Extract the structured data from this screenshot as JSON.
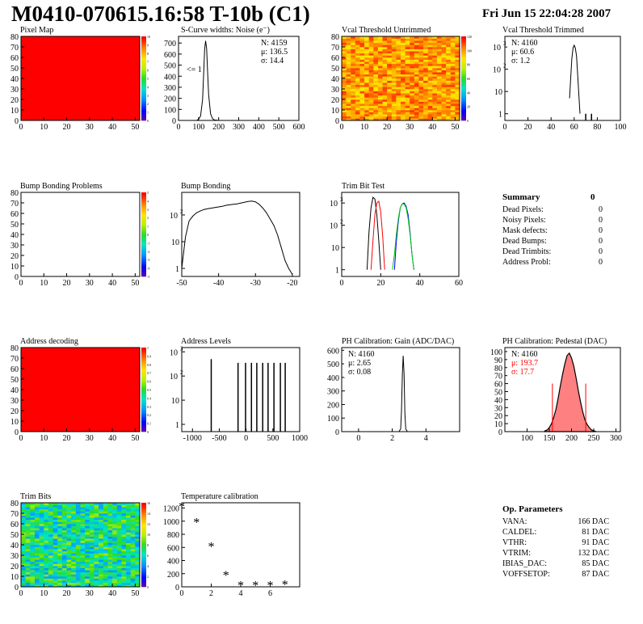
{
  "header": {
    "title": "M0410-070615.16:58 T-10b (C1)",
    "date": "Fri Jun 15 22:04:28 2007"
  },
  "colors": {
    "red": "#ff0000",
    "green": "#00cc00",
    "blue": "#0000ff",
    "black": "#000000",
    "pedestal_fill": "#ff8080"
  },
  "chart_data": [
    {
      "id": "pixel-map",
      "type": "heatmap",
      "title": "Pixel Map",
      "xlim": [
        0,
        52
      ],
      "ylim": [
        0,
        80
      ],
      "xticks": [
        0,
        10,
        20,
        30,
        40,
        50
      ],
      "yticks": [
        0,
        10,
        20,
        30,
        40,
        50,
        60,
        70,
        80
      ],
      "fill": "uniform",
      "value": 10,
      "zticks": [
        "0",
        "1",
        "2",
        "3",
        "4",
        "5",
        "6",
        "7",
        "8",
        "9",
        "10"
      ]
    },
    {
      "id": "scurve-noise",
      "type": "line",
      "title": "S-Curve widths: Noise (e⁻)",
      "xlim": [
        0,
        600
      ],
      "ylim": [
        0,
        760
      ],
      "xticks": [
        0,
        100,
        200,
        300,
        400,
        500,
        600
      ],
      "yticks": [
        0,
        100,
        200,
        300,
        400,
        500,
        600,
        700
      ],
      "stats": [
        "N: 4159",
        "μ: 136.5",
        "σ: 14.4"
      ],
      "annotation": "<= 1",
      "series": [
        {
          "x": [
            90,
            100,
            110,
            120,
            125,
            130,
            135,
            140,
            145,
            150,
            160,
            170,
            180,
            200
          ],
          "y": [
            0,
            10,
            40,
            190,
            400,
            640,
            720,
            650,
            440,
            230,
            60,
            15,
            4,
            0
          ]
        }
      ]
    },
    {
      "id": "vcal-untrimmed",
      "type": "heatmap",
      "title": "Vcal Threshold Untrimmed",
      "xlim": [
        0,
        52
      ],
      "ylim": [
        0,
        80
      ],
      "xticks": [
        0,
        10,
        20,
        30,
        40,
        50
      ],
      "yticks": [
        0,
        10,
        20,
        30,
        40,
        50,
        60,
        70,
        80
      ],
      "fill": "random",
      "range": [
        0.72,
        0.95
      ],
      "zticks": [
        "0",
        "20",
        "40",
        "60",
        "80",
        "100",
        "120"
      ]
    },
    {
      "id": "vcal-trimmed",
      "type": "line",
      "title": "Vcal Threshold Trimmed",
      "xlim": [
        0,
        100
      ],
      "ylim": [
        0.5,
        3000
      ],
      "log_y": true,
      "xticks": [
        0,
        20,
        40,
        60,
        80,
        100
      ],
      "stats": [
        "N: 4160",
        "μ: 60.6",
        "σ:  1.2"
      ],
      "series": [
        {
          "x": [
            56,
            57,
            58,
            59,
            60,
            61,
            62,
            63,
            64,
            65
          ],
          "y": [
            5,
            40,
            300,
            900,
            1200,
            900,
            400,
            60,
            8,
            1
          ]
        }
      ],
      "spikes": [
        {
          "x": 70,
          "y": 1
        },
        {
          "x": 75,
          "y": 1
        }
      ]
    },
    {
      "id": "bump-bonding-problems",
      "type": "heatmap",
      "title": "Bump Bonding Problems",
      "xlim": [
        0,
        52
      ],
      "ylim": [
        0,
        80
      ],
      "xticks": [
        0,
        10,
        20,
        30,
        40,
        50
      ],
      "yticks": [
        0,
        10,
        20,
        30,
        40,
        50,
        60,
        70,
        80
      ],
      "fill": "empty",
      "zticks": [
        "-5",
        "-4",
        "-3",
        "-2",
        "-1",
        "0",
        "1",
        "2",
        "3",
        "4",
        "5"
      ]
    },
    {
      "id": "bump-bonding",
      "type": "line",
      "title": "Bump Bonding",
      "xlim": [
        -50,
        -18
      ],
      "ylim": [
        0.5,
        700
      ],
      "log_y": true,
      "xticks": [
        -50,
        -40,
        -30,
        -20
      ],
      "series": [
        {
          "x": [
            -50,
            -49,
            -48,
            -47,
            -46,
            -45,
            -44,
            -43,
            -42,
            -41,
            -40,
            -39,
            -38,
            -37,
            -36,
            -35,
            -34,
            -33,
            -32,
            -31,
            -30,
            -29,
            -28,
            -27,
            -26,
            -25,
            -24,
            -23,
            -22,
            -21,
            -20
          ],
          "y": [
            1,
            15,
            60,
            90,
            120,
            140,
            160,
            170,
            180,
            190,
            200,
            210,
            230,
            240,
            250,
            260,
            280,
            300,
            320,
            330,
            310,
            250,
            180,
            120,
            70,
            40,
            18,
            6,
            2,
            1,
            0.6
          ]
        }
      ]
    },
    {
      "id": "trim-bit-test",
      "type": "line",
      "title": "Trim Bit Test",
      "xlim": [
        0,
        60
      ],
      "ylim": [
        0.5,
        3000
      ],
      "log_y": true,
      "xticks": [
        0,
        20,
        40,
        60
      ],
      "series": [
        {
          "color": "black",
          "x": [
            13,
            14,
            15,
            16,
            17,
            18,
            19,
            20
          ],
          "y": [
            1,
            50,
            600,
            1800,
            1500,
            300,
            20,
            1
          ]
        },
        {
          "color": "red",
          "x": [
            15,
            16,
            17,
            18,
            19,
            20,
            21,
            22
          ],
          "y": [
            1,
            20,
            300,
            1000,
            1200,
            400,
            30,
            1
          ]
        },
        {
          "color": "blue",
          "x": [
            27,
            28,
            29,
            30,
            31,
            32,
            33,
            34,
            35,
            36,
            37
          ],
          "y": [
            1,
            20,
            150,
            600,
            900,
            1000,
            700,
            300,
            50,
            5,
            1
          ]
        },
        {
          "color": "green",
          "x": [
            26,
            27,
            28,
            29,
            30,
            31,
            32,
            33,
            34,
            35,
            36,
            37
          ],
          "y": [
            1,
            5,
            40,
            200,
            600,
            900,
            900,
            600,
            200,
            40,
            5,
            1
          ]
        }
      ]
    },
    {
      "id": "address-decoding",
      "type": "heatmap",
      "title": "Address decoding",
      "xlim": [
        0,
        52
      ],
      "ylim": [
        0,
        80
      ],
      "xticks": [
        0,
        10,
        20,
        30,
        40,
        50
      ],
      "yticks": [
        0,
        10,
        20,
        30,
        40,
        50,
        60,
        70,
        80
      ],
      "fill": "uniform",
      "value": 1,
      "zticks": [
        "0",
        "0.1",
        "0.2",
        "0.3",
        "0.4",
        "0.5",
        "0.6",
        "0.7",
        "0.8",
        "0.9",
        "1"
      ]
    },
    {
      "id": "address-levels",
      "type": "bar",
      "title": "Address Levels",
      "xlim": [
        -1200,
        1000
      ],
      "ylim": [
        0.5,
        1500
      ],
      "log_y": true,
      "xticks": [
        -1000,
        -500,
        0,
        500,
        1000
      ],
      "spikes": [
        {
          "x": -650,
          "y": 500
        },
        {
          "x": -150,
          "y": 350
        },
        {
          "x": -10,
          "y": 350
        },
        {
          "x": 100,
          "y": 350
        },
        {
          "x": 200,
          "y": 350
        },
        {
          "x": 310,
          "y": 350
        },
        {
          "x": 410,
          "y": 350
        },
        {
          "x": 520,
          "y": 350
        },
        {
          "x": 640,
          "y": 350
        },
        {
          "x": 730,
          "y": 350
        }
      ]
    },
    {
      "id": "ph-gain",
      "type": "line",
      "title": "PH Calibration: Gain (ADC/DAC)",
      "xlim": [
        -1,
        6
      ],
      "ylim": [
        0,
        620
      ],
      "xticks": [
        0,
        2,
        4
      ],
      "yticks": [
        0,
        100,
        200,
        300,
        400,
        500,
        600
      ],
      "stats": [
        "N: 4160",
        "μ: 2.65",
        "σ: 0.08"
      ],
      "series": [
        {
          "x": [
            2.4,
            2.5,
            2.55,
            2.6,
            2.65,
            2.7,
            2.75,
            2.8,
            2.9
          ],
          "y": [
            0,
            20,
            150,
            420,
            560,
            430,
            140,
            20,
            0
          ]
        }
      ]
    },
    {
      "id": "ph-pedestal",
      "type": "area",
      "title": "PH Calibration: Pedestal (DAC)",
      "xlim": [
        50,
        310
      ],
      "ylim": [
        0,
        105
      ],
      "xticks": [
        100,
        150,
        200,
        250,
        300
      ],
      "yticks": [
        0,
        10,
        20,
        30,
        40,
        50,
        60,
        70,
        80,
        90,
        100
      ],
      "stats": [
        "N: 4160",
        "μ: 193.7",
        "σ: 17.7"
      ],
      "cut_lines": [
        157,
        232
      ],
      "series": [
        {
          "x": [
            140,
            145,
            150,
            155,
            160,
            165,
            170,
            175,
            180,
            185,
            190,
            195,
            200,
            205,
            210,
            215,
            220,
            225,
            230,
            235,
            240,
            245,
            250,
            255
          ],
          "y": [
            1,
            2,
            5,
            10,
            18,
            28,
            42,
            58,
            72,
            85,
            95,
            98,
            92,
            82,
            68,
            52,
            38,
            25,
            15,
            9,
            5,
            2,
            1,
            0
          ]
        }
      ]
    },
    {
      "id": "trim-bits",
      "type": "heatmap",
      "title": "Trim Bits",
      "xlim": [
        0,
        52
      ],
      "ylim": [
        0,
        80
      ],
      "xticks": [
        0,
        10,
        20,
        30,
        40,
        50
      ],
      "yticks": [
        0,
        10,
        20,
        30,
        40,
        50,
        60,
        70,
        80
      ],
      "fill": "random",
      "range": [
        0.25,
        0.6
      ],
      "zticks": [
        "0",
        "2",
        "4",
        "6",
        "8",
        "10",
        "12",
        "14",
        "16"
      ]
    },
    {
      "id": "temperature-calibration",
      "type": "scatter",
      "title": "Temperature calibration",
      "xlim": [
        0,
        8
      ],
      "ylim": [
        0,
        1280
      ],
      "xticks": [
        0,
        2,
        4,
        6
      ],
      "yticks": [
        0,
        200,
        400,
        600,
        800,
        1000,
        1200
      ],
      "points": [
        [
          0,
          1220
        ],
        [
          1,
          980
        ],
        [
          2,
          610
        ],
        [
          3,
          170
        ],
        [
          4,
          20
        ],
        [
          5,
          20
        ],
        [
          6,
          20
        ],
        [
          7,
          30
        ]
      ]
    }
  ],
  "summary": {
    "title": "Summary",
    "value": "0",
    "rows": [
      {
        "label": "Dead Pixels:",
        "value": "0"
      },
      {
        "label": "Noisy Pixels:",
        "value": "0"
      },
      {
        "label": "Mask defects:",
        "value": "0"
      },
      {
        "label": "Dead Bumps:",
        "value": "0"
      },
      {
        "label": "Dead Trimbits:",
        "value": "0"
      },
      {
        "label": "Address Probl:",
        "value": "0"
      }
    ]
  },
  "op_params": {
    "title": "Op. Parameters",
    "rows": [
      {
        "label": "VANA:",
        "value": "166 DAC"
      },
      {
        "label": "CALDEL:",
        "value": "81 DAC"
      },
      {
        "label": "VTHR:",
        "value": "91 DAC"
      },
      {
        "label": "VTRIM:",
        "value": "132 DAC"
      },
      {
        "label": "IBIAS_DAC:",
        "value": "85 DAC"
      },
      {
        "label": "VOFFSETOP:",
        "value": "87 DAC"
      }
    ]
  }
}
